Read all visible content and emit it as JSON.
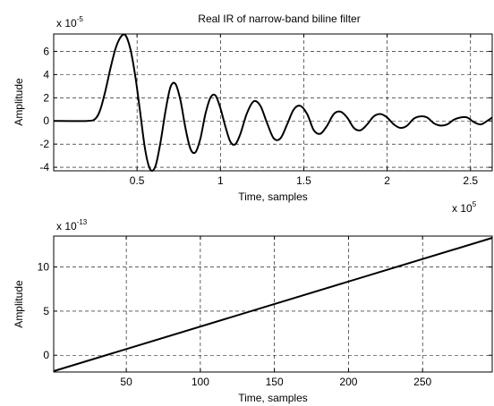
{
  "chart_data": [
    {
      "type": "line",
      "title": "Real IR of narrow-band biline filter",
      "xlabel": "Time, samples",
      "ylabel": "Amplitude",
      "x_multiplier": {
        "base": "x 10",
        "exp": "5"
      },
      "y_multiplier": {
        "base": "x 10",
        "exp": "-5"
      },
      "xlim": [
        0,
        2.63
      ],
      "ylim": [
        -4.3,
        7.5
      ],
      "xticks": [
        0.5,
        1,
        1.5,
        2,
        2.5
      ],
      "xtick_labels": [
        "0.5",
        "1",
        "1.5",
        "2",
        "2.5"
      ],
      "yticks": [
        -4,
        -2,
        0,
        2,
        4,
        6
      ],
      "ytick_labels": [
        "-4",
        "-2",
        "0",
        "2",
        "4",
        "6"
      ],
      "grid": true,
      "series": [
        {
          "color": "#000000",
          "x": [
            0.0,
            0.2,
            0.25,
            0.28,
            0.31,
            0.34,
            0.37,
            0.4,
            0.43,
            0.46,
            0.49,
            0.52,
            0.55,
            0.58,
            0.61,
            0.64,
            0.67,
            0.7,
            0.73,
            0.76,
            0.79,
            0.82,
            0.85,
            0.88,
            0.91,
            0.94,
            0.97,
            1.0,
            1.03,
            1.06,
            1.09,
            1.12,
            1.16,
            1.2,
            1.24,
            1.28,
            1.32,
            1.36,
            1.4,
            1.44,
            1.48,
            1.52,
            1.56,
            1.6,
            1.64,
            1.68,
            1.72,
            1.76,
            1.8,
            1.84,
            1.88,
            1.92,
            1.96,
            2.0,
            2.04,
            2.08,
            2.12,
            2.16,
            2.2,
            2.24,
            2.28,
            2.32,
            2.36,
            2.4,
            2.44,
            2.48,
            2.52,
            2.56,
            2.6,
            2.63
          ],
          "y": [
            0.0,
            0.0,
            0.2,
            1.0,
            2.6,
            4.5,
            6.2,
            7.2,
            7.4,
            6.2,
            3.8,
            0.6,
            -2.6,
            -4.2,
            -3.9,
            -1.9,
            0.8,
            2.9,
            3.2,
            1.8,
            -0.6,
            -2.4,
            -2.7,
            -1.5,
            0.6,
            2.0,
            2.2,
            1.1,
            -0.5,
            -1.8,
            -2.0,
            -1.1,
            0.7,
            1.7,
            1.3,
            -0.2,
            -1.5,
            -1.5,
            -0.3,
            1.0,
            1.3,
            0.6,
            -0.8,
            -1.1,
            -0.4,
            0.6,
            0.8,
            0.3,
            -0.6,
            -0.8,
            -0.3,
            0.4,
            0.6,
            0.3,
            -0.3,
            -0.6,
            -0.4,
            0.2,
            0.4,
            0.3,
            -0.2,
            -0.4,
            -0.3,
            0.1,
            0.3,
            0.3,
            -0.1,
            -0.3,
            0.0,
            0.3
          ]
        }
      ]
    },
    {
      "type": "line",
      "title": "",
      "xlabel": "Time, samples",
      "ylabel": "Amplitude",
      "y_multiplier": {
        "base": "x 10",
        "exp": "-13"
      },
      "xlim": [
        1,
        297
      ],
      "ylim": [
        -1.9,
        13.5
      ],
      "xticks": [
        50,
        100,
        150,
        200,
        250
      ],
      "xtick_labels": [
        "50",
        "100",
        "150",
        "200",
        "250"
      ],
      "yticks": [
        0,
        5,
        10
      ],
      "ytick_labels": [
        "0",
        "5",
        "10"
      ],
      "grid": true,
      "series": [
        {
          "color": "#000000",
          "x": [
            1,
            297
          ],
          "y": [
            -1.8,
            13.3
          ]
        }
      ]
    }
  ]
}
